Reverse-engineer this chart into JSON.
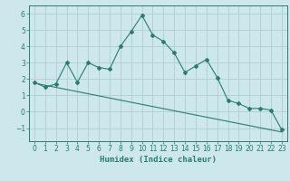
{
  "x": [
    0,
    1,
    2,
    3,
    4,
    5,
    6,
    7,
    8,
    9,
    10,
    11,
    12,
    13,
    14,
    15,
    16,
    17,
    18,
    19,
    20,
    21,
    22,
    23
  ],
  "y_data": [
    1.8,
    1.5,
    1.7,
    3.0,
    1.8,
    3.0,
    2.7,
    2.6,
    4.0,
    4.9,
    5.9,
    4.7,
    4.3,
    3.6,
    2.4,
    2.8,
    3.2,
    2.1,
    0.7,
    0.5,
    0.2,
    0.2,
    0.1,
    -1.1
  ],
  "y_trend": [
    1.75,
    1.62,
    1.49,
    1.36,
    1.23,
    1.1,
    0.97,
    0.84,
    0.71,
    0.58,
    0.45,
    0.32,
    0.19,
    0.06,
    -0.07,
    -0.2,
    -0.33,
    -0.46,
    -0.59,
    -0.72,
    -0.85,
    -0.98,
    -1.11,
    -1.24
  ],
  "line_color": "#2a7d6b",
  "bg_color": "#cce8ec",
  "grid_color": "#b0cdd0",
  "xlabel": "Humidex (Indice chaleur)",
  "ylim": [
    -1.8,
    6.5
  ],
  "xlim": [
    -0.5,
    23.5
  ],
  "yticks": [
    -1,
    0,
    1,
    2,
    3,
    4,
    5,
    6
  ],
  "xticks": [
    0,
    1,
    2,
    3,
    4,
    5,
    6,
    7,
    8,
    9,
    10,
    11,
    12,
    13,
    14,
    15,
    16,
    17,
    18,
    19,
    20,
    21,
    22,
    23
  ],
  "xlabel_fontsize": 6.5,
  "tick_fontsize": 5.5
}
